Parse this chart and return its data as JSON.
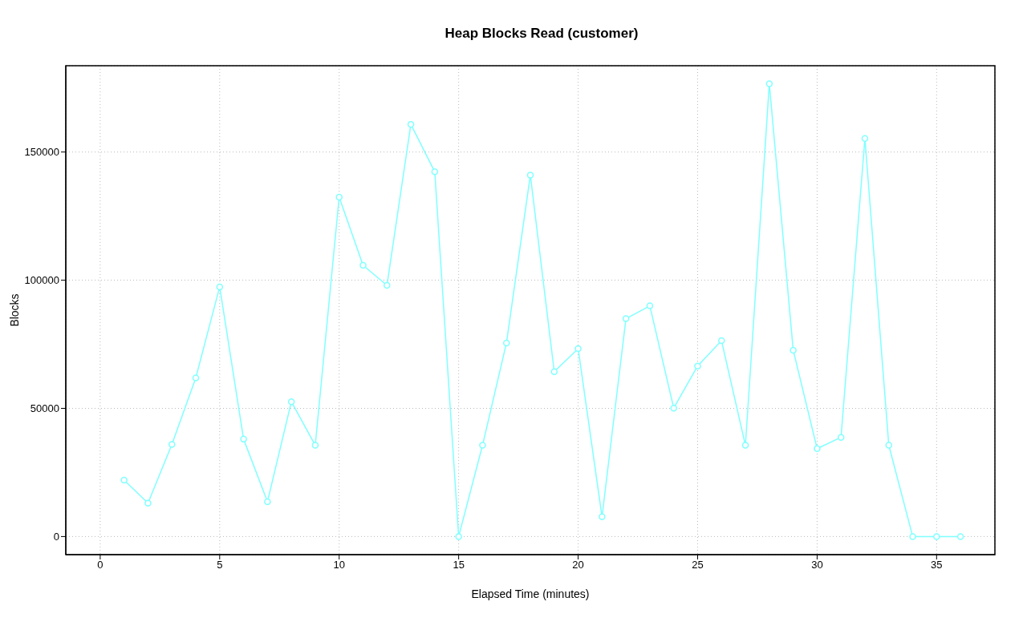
{
  "chart_data": {
    "type": "line",
    "title": "Heap Blocks Read (customer)",
    "xlabel": "Elapsed Time (minutes)",
    "ylabel": "Blocks",
    "x": [
      1,
      2,
      3,
      4,
      5,
      6,
      7,
      8,
      9,
      10,
      11,
      12,
      13,
      14,
      15,
      16,
      17,
      18,
      19,
      20,
      21,
      22,
      23,
      24,
      25,
      26,
      27,
      28,
      29,
      30,
      31,
      32,
      33,
      34,
      35,
      36
    ],
    "series": [
      {
        "color": "#80ffff",
        "values": [
          22000,
          13000,
          35900,
          61900,
          97400,
          38000,
          13600,
          52600,
          35600,
          132400,
          105800,
          98000,
          160800,
          142300,
          0,
          35600,
          75500,
          141000,
          64300,
          73300,
          7700,
          85000,
          90000,
          50100,
          66500,
          76400,
          35600,
          176600,
          72700,
          34300,
          38700,
          155300,
          35600,
          0,
          0,
          0
        ]
      }
    ],
    "xlim": [
      -1.44,
      37.44
    ],
    "xticks": [
      0,
      5,
      10,
      15,
      20,
      25,
      30,
      35
    ],
    "ylim": [
      -7064,
      183664
    ],
    "yticks": [
      0,
      50000,
      100000,
      150000
    ],
    "grid": true,
    "marker": "circle",
    "line_style": "solid"
  }
}
